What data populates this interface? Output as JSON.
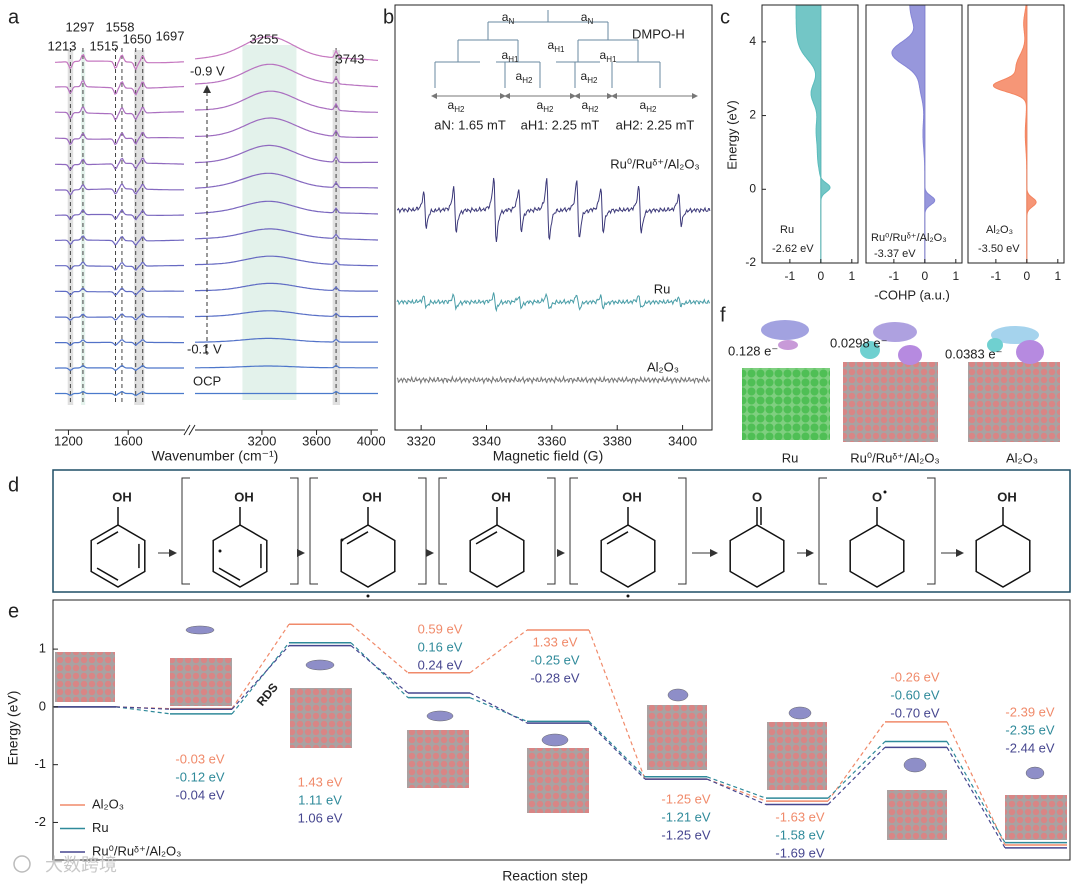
{
  "panel_labels": [
    "a",
    "b",
    "c",
    "d",
    "e",
    "f"
  ],
  "chart_data": [
    {
      "type": "spectra",
      "xlabel": "Wavenumber (cm⁻¹)",
      "xlim": [
        1110,
        4050
      ],
      "x_break": [
        1980,
        2710
      ],
      "xticks": [
        1200,
        1600,
        3200,
        3600,
        4000
      ],
      "peaks": [
        1213,
        1297,
        1515,
        1558,
        1650,
        1697,
        3255,
        3743
      ],
      "potential_labels": [
        "-0.9 V",
        "-0.1 V",
        "OCP"
      ],
      "colors": [
        "#c678c0",
        "#b873c0",
        "#aa6fc0",
        "#9d6bbf",
        "#906abf",
        "#8468bf",
        "#7a67bf",
        "#7068c0",
        "#676ac2",
        "#5f6cc4",
        "#586fc6",
        "#5272c8",
        "#4d76ca",
        "#4a7acc"
      ]
    },
    {
      "type": "epr",
      "xlabel": "Magnetic field (G)",
      "xlim": [
        3312,
        3409
      ],
      "xticks": [
        3320,
        3340,
        3360,
        3380,
        3400
      ],
      "series": [
        {
          "name": "Ru⁰/Ruᵟ⁺/Al₂O₃",
          "color": "#3d3a7a"
        },
        {
          "name": "Ru",
          "color": "#4a9ea8"
        },
        {
          "name": "Al₂O₃",
          "color": "#777777"
        }
      ],
      "adduct": "DMPO-H",
      "splitting_labels": [
        {
          "base": "a",
          "sub": "N"
        },
        {
          "base": "a",
          "sub": "N"
        },
        {
          "base": "a",
          "sub": "H1"
        },
        {
          "base": "a",
          "sub": "H1"
        },
        {
          "base": "a",
          "sub": "H1"
        },
        {
          "base": "a",
          "sub": "H2"
        },
        {
          "base": "a",
          "sub": "H2"
        },
        {
          "base": "a",
          "sub": "H2"
        },
        {
          "base": "a",
          "sub": "H2"
        },
        {
          "base": "a",
          "sub": "H2"
        },
        {
          "base": "a",
          "sub": "H2"
        }
      ],
      "constants": [
        "aN: 1.65 mT",
        "aH1: 2.25 mT",
        "aH2: 2.25 mT"
      ]
    },
    {
      "type": "area",
      "ylabel": "Energy (eV)",
      "xlabel": "-COHP (a.u.)",
      "xlim": [
        -1.9,
        1.2
      ],
      "ylim": [
        -2,
        5
      ],
      "xticks": [
        -1,
        0,
        1
      ],
      "yticks": [
        -2,
        0,
        2,
        4
      ],
      "panels": [
        {
          "name": "Ru",
          "icohp": "-2.62 eV",
          "color": "#5bbcbc"
        },
        {
          "name": "Ru⁰/Ruᵟ⁺/Al₂O₃",
          "icohp": "-3.37 eV",
          "color": "#8585d6"
        },
        {
          "name": "Al₂O₃",
          "icohp": "-3.50 eV",
          "color": "#f4845f"
        }
      ]
    },
    {
      "type": "step",
      "ylabel": "Energy (eV)",
      "xlabel": "Reaction step",
      "annotation": "RDS",
      "categories": [
        null,
        null,
        null,
        null,
        null,
        null,
        null,
        null,
        null
      ],
      "ylim": [
        -2.65,
        1.85
      ],
      "yticks": [
        -2,
        -1,
        0,
        1
      ],
      "legend": "lower left",
      "series": [
        {
          "name": "Al₂O₃",
          "color": "#f08a6a",
          "values": [
            0,
            -0.03,
            1.43,
            0.59,
            1.33,
            -1.25,
            -1.63,
            -0.26,
            -2.39
          ],
          "value_labels": [
            null,
            "-0.03 eV",
            "1.43 eV",
            "0.59 eV",
            "1.33 eV",
            "-1.25 eV",
            "-1.63 eV",
            "-0.26 eV",
            "-2.39 eV"
          ]
        },
        {
          "name": "Ru",
          "color": "#2f8a9a",
          "values": [
            0,
            -0.12,
            1.11,
            0.16,
            -0.25,
            -1.21,
            -1.58,
            -0.6,
            -2.35
          ],
          "value_labels": [
            null,
            "-0.12 eV",
            "1.11 eV",
            "0.16 eV",
            "-0.25 eV",
            "-1.21 eV",
            "-1.58 eV",
            "-0.60 eV",
            "-2.35 eV"
          ]
        },
        {
          "name": "Ru⁰/Ruᵟ⁺/Al₂O₃",
          "color": "#46468f",
          "values": [
            0,
            -0.04,
            1.06,
            0.24,
            -0.28,
            -1.25,
            -1.69,
            -0.7,
            -2.44
          ],
          "value_labels": [
            null,
            "-0.04 eV",
            "1.06 eV",
            "0.24 eV",
            "-0.28 eV",
            "-1.25 eV",
            "-1.69 eV",
            "-0.70 eV",
            "-2.44 eV"
          ]
        }
      ]
    }
  ],
  "panel_d": {
    "labels": [
      "OH",
      "OH",
      "OH",
      "OH",
      "OH",
      "O",
      "O",
      "OH"
    ]
  },
  "panel_f": {
    "charges": [
      "0.128 e⁻",
      "0.0298 e⁻",
      "0.0383 e⁻"
    ],
    "labels": [
      "Ru",
      "Ru⁰/Ruᵟ⁺/Al₂O₃",
      "Al₂O₃"
    ]
  },
  "watermark": "大数跨境"
}
